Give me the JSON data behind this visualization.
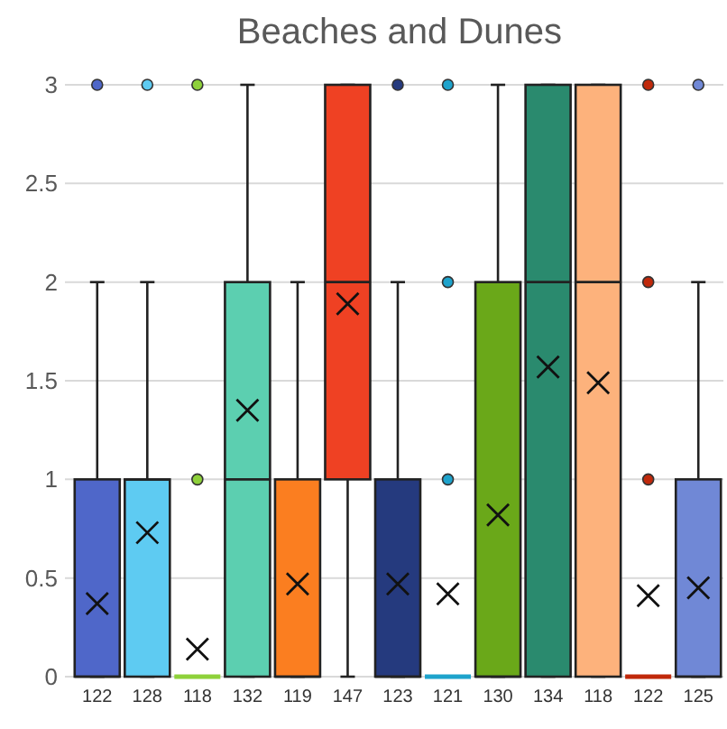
{
  "chart_data": {
    "type": "box",
    "title": "Beaches and Dunes",
    "categories": [
      "122",
      "128",
      "118",
      "132",
      "119",
      "147",
      "123",
      "121",
      "130",
      "134",
      "118",
      "122",
      "125"
    ],
    "colors": [
      "#4f67c9",
      "#5ecbf2",
      "#8ed13a",
      "#5ccfb0",
      "#fb7e20",
      "#ef4123",
      "#253a7e",
      "#1ea3cc",
      "#6aa819",
      "#2a8a6e",
      "#fdb27c",
      "#c0290b",
      "#7088d6"
    ],
    "boxes": [
      {
        "low": 0,
        "q1": 0,
        "median": 0,
        "q3": 1,
        "high": 2,
        "mean": 0.37,
        "outliers": [
          3
        ]
      },
      {
        "low": 0,
        "q1": 0,
        "median": 1,
        "q3": 1,
        "high": 2,
        "mean": 0.73,
        "outliers": [
          3
        ]
      },
      {
        "low": 0,
        "q1": 0,
        "median": 0,
        "q3": 0,
        "high": 0,
        "mean": 0.14,
        "outliers": [
          1,
          3
        ]
      },
      {
        "low": 0,
        "q1": 0,
        "median": 1,
        "q3": 2,
        "high": 3,
        "mean": 1.35
      },
      {
        "low": 0,
        "q1": 0,
        "median": 0,
        "q3": 1,
        "high": 2,
        "mean": 0.47
      },
      {
        "low": 0,
        "q1": 1,
        "median": 2,
        "q3": 3,
        "high": 3,
        "mean": 1.89
      },
      {
        "low": 0,
        "q1": 0,
        "median": 0,
        "q3": 1,
        "high": 2,
        "mean": 0.47,
        "outliers": [
          3
        ]
      },
      {
        "low": 0,
        "q1": 0,
        "median": 0,
        "q3": 0,
        "high": 0,
        "mean": 0.42,
        "outliers": [
          1,
          2,
          3
        ]
      },
      {
        "low": 0,
        "q1": 0,
        "median": 0,
        "q3": 2,
        "high": 3,
        "mean": 0.82
      },
      {
        "low": 0,
        "q1": 0,
        "median": 2,
        "q3": 3,
        "high": 3,
        "mean": 1.57
      },
      {
        "low": 0,
        "q1": 0,
        "median": 2,
        "q3": 3,
        "high": 3,
        "mean": 1.49
      },
      {
        "low": 0,
        "q1": 0,
        "median": 0,
        "q3": 0,
        "high": 0,
        "mean": 0.41,
        "outliers": [
          1,
          2,
          3
        ]
      },
      {
        "low": 0,
        "q1": 0,
        "median": 0,
        "q3": 1,
        "high": 2,
        "mean": 0.45,
        "outliers": [
          3
        ]
      }
    ],
    "ylim": [
      0,
      3
    ],
    "yticks": [
      0,
      0.5,
      1,
      1.5,
      2,
      2.5,
      3
    ],
    "grid": "y"
  }
}
